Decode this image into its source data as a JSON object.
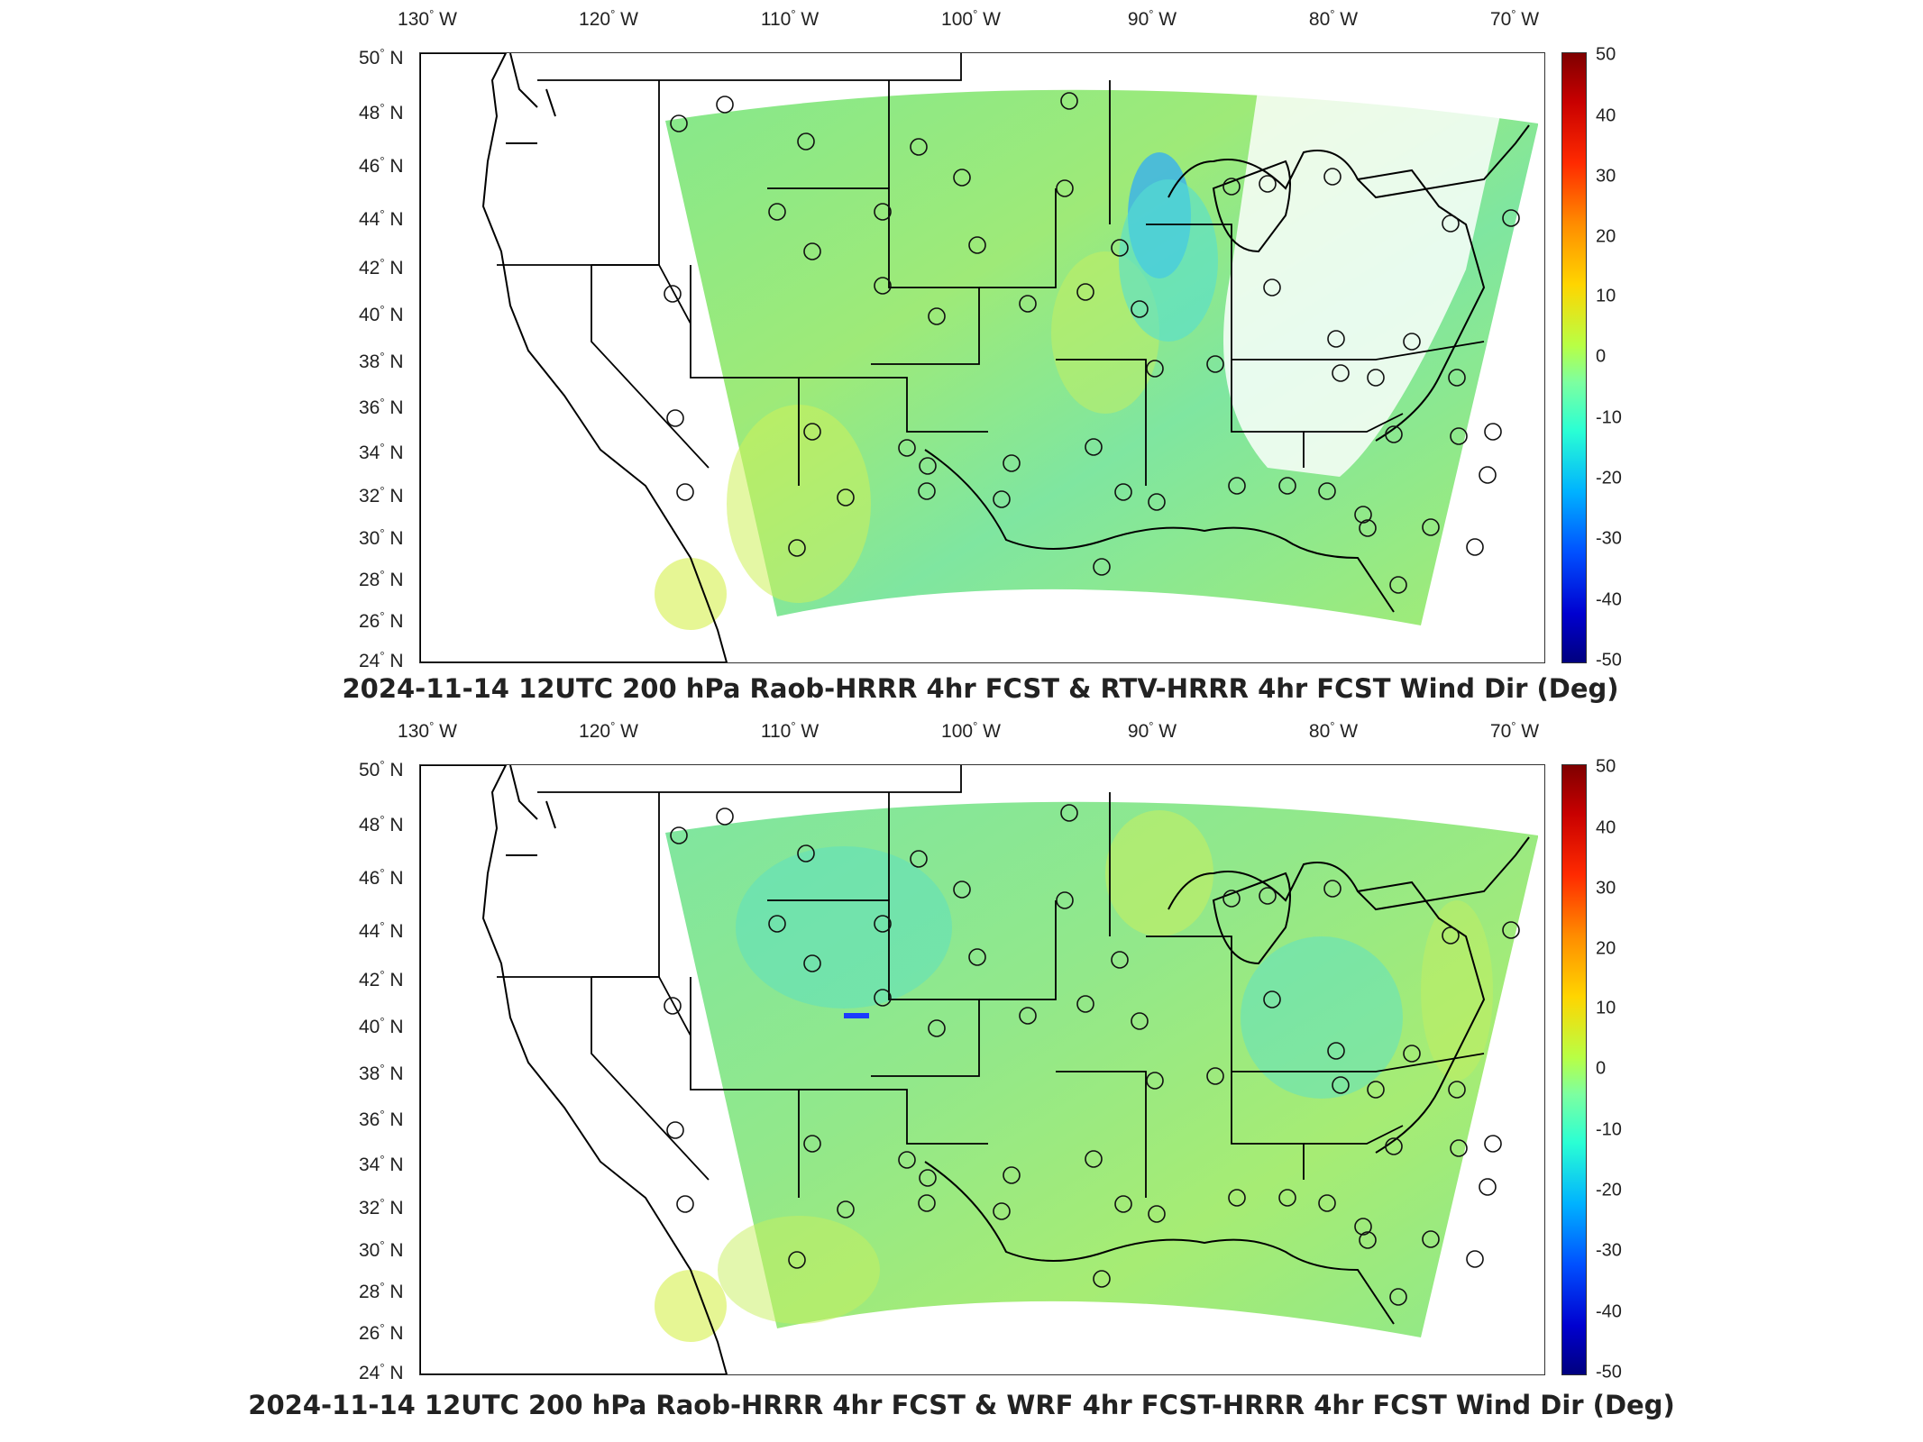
{
  "panels": [
    {
      "title": "2024-11-14 12UTC 200 hPa Raob-HRRR 4hr FCST & RTV-HRRR 4hr FCST Wind Dir (Deg)"
    },
    {
      "title": "2024-11-14 12UTC 200 hPa Raob-HRRR 4hr FCST & WRF 4hr FCST-HRRR 4hr FCST Wind Dir (Deg)"
    }
  ],
  "axes": {
    "lon_ticks": [
      "130",
      "120",
      "110",
      "100",
      "90",
      "80",
      "70"
    ],
    "lon_suffix": "W",
    "lat_ticks": [
      "50",
      "48",
      "46",
      "44",
      "42",
      "40",
      "38",
      "36",
      "34",
      "32",
      "30",
      "28",
      "26",
      "24"
    ],
    "lat_suffix": "N",
    "degree_symbol": "°"
  },
  "colorbar": {
    "ticks": [
      "50",
      "40",
      "30",
      "20",
      "10",
      "0",
      "-10",
      "-20",
      "-30",
      "-40",
      "-50"
    ],
    "range": [
      -50,
      50
    ],
    "colormap": "jet"
  },
  "colors": {
    "field_base": "#7de89a",
    "field_light_green": "#a8ee6a",
    "field_yellow": "#d8f050",
    "field_cyan": "#55e0d0",
    "field_blue": "#2aa8ff",
    "outline": "#000000"
  }
}
